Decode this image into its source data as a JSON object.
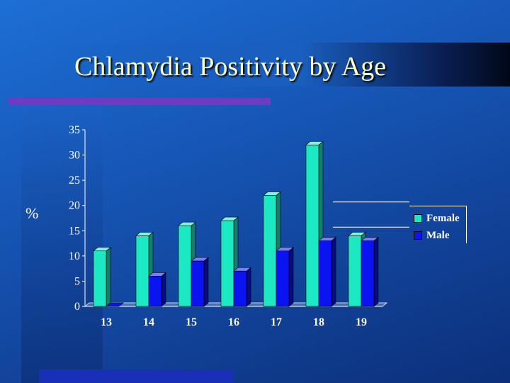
{
  "title": "Chlamydia Positivity by Age",
  "colors": {
    "female": "#1de8c4",
    "male": "#0a14f0"
  },
  "chart_data": {
    "type": "bar",
    "title": "Chlamydia Positivity by Age",
    "xlabel": "",
    "ylabel": "%",
    "ylim": [
      0,
      35
    ],
    "yticks": [
      0,
      5,
      10,
      15,
      20,
      25,
      30,
      35
    ],
    "grid": "horizontal lines at 20 and 15 (partial)",
    "legend": "right",
    "categories": [
      "13",
      "14",
      "15",
      "16",
      "17",
      "18",
      "19"
    ],
    "series": [
      {
        "name": "Female",
        "values": [
          11,
          14,
          16,
          17,
          22,
          32,
          14
        ]
      },
      {
        "name": "Male",
        "values": [
          0,
          6,
          9,
          7,
          11,
          13,
          13
        ]
      }
    ]
  }
}
